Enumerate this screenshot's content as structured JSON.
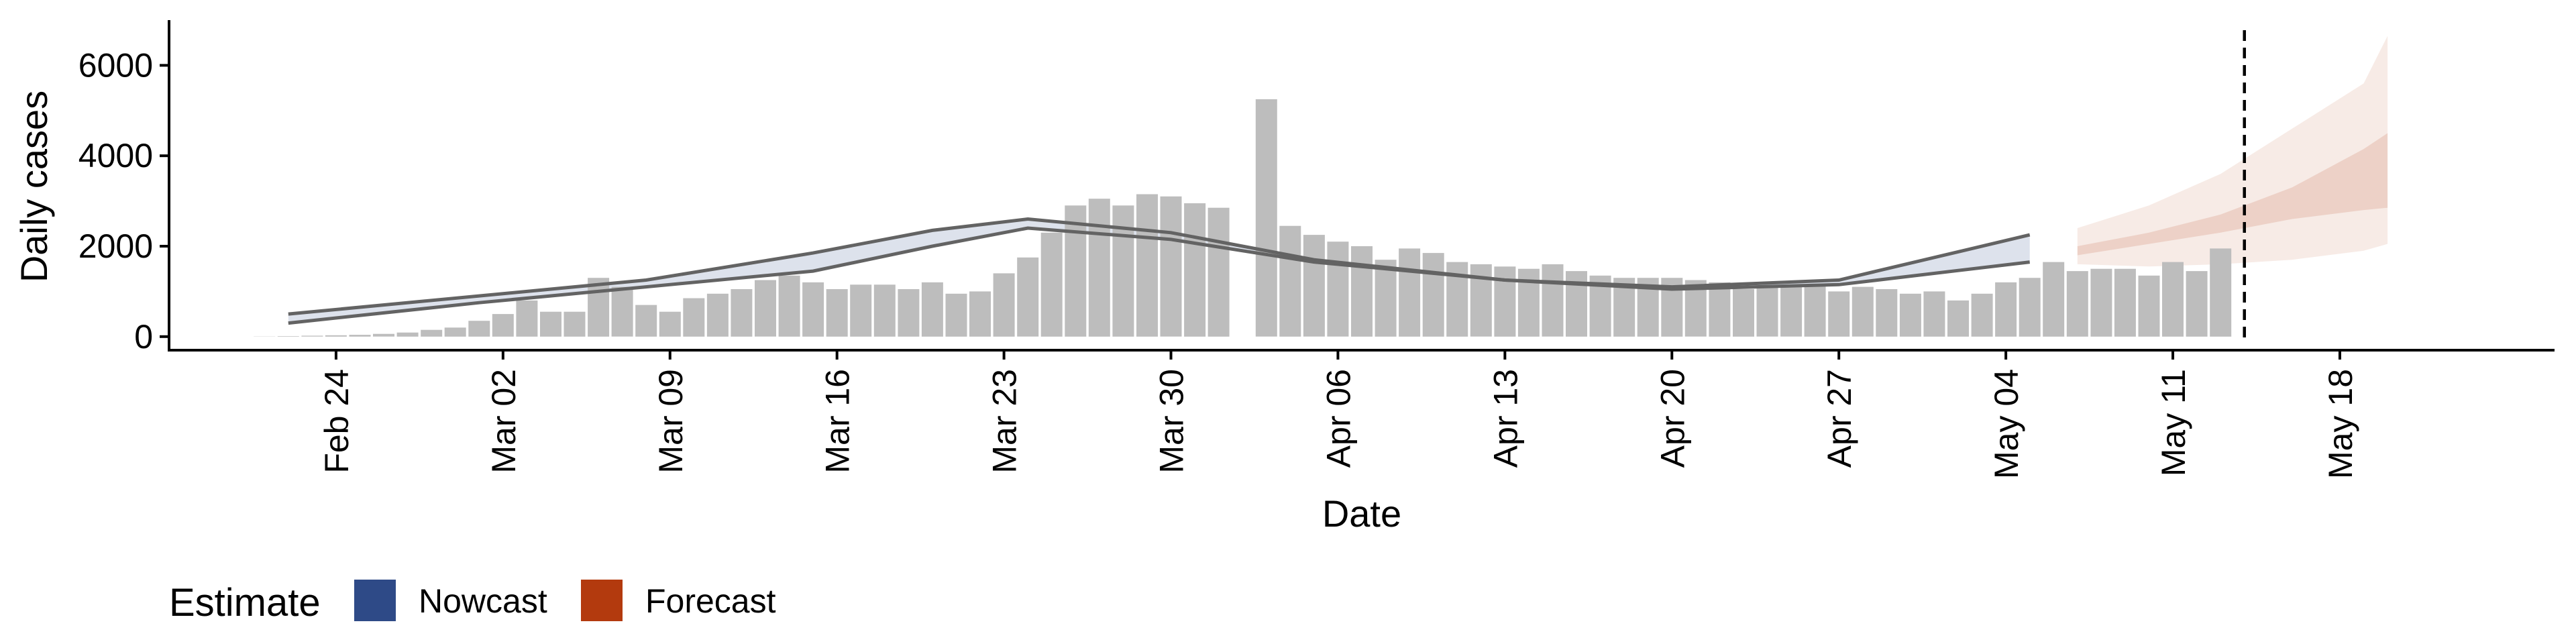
{
  "chart_data": {
    "type": "bar",
    "title": "",
    "xlabel": "Date",
    "ylabel": "Daily cases",
    "xlim": [
      "2020-02-17",
      "2020-05-27"
    ],
    "ylim": [
      -300,
      7000
    ],
    "y_ticks": [
      0,
      2000,
      4000,
      6000
    ],
    "x_ticks": [
      {
        "date": "2020-02-24",
        "label": "Feb 24"
      },
      {
        "date": "2020-03-02",
        "label": "Mar 02"
      },
      {
        "date": "2020-03-09",
        "label": "Mar 09"
      },
      {
        "date": "2020-03-16",
        "label": "Mar 16"
      },
      {
        "date": "2020-03-23",
        "label": "Mar 23"
      },
      {
        "date": "2020-03-30",
        "label": "Mar 30"
      },
      {
        "date": "2020-04-06",
        "label": "Apr 06"
      },
      {
        "date": "2020-04-13",
        "label": "Apr 13"
      },
      {
        "date": "2020-04-20",
        "label": "Apr 20"
      },
      {
        "date": "2020-04-27",
        "label": "Apr 27"
      },
      {
        "date": "2020-05-04",
        "label": "May 04"
      },
      {
        "date": "2020-05-11",
        "label": "May 11"
      },
      {
        "date": "2020-05-18",
        "label": "May 18"
      }
    ],
    "grid": false,
    "legend_position": "bottom-left",
    "colors": {
      "bars": "#bdbdbd",
      "nowcast": "#2e4a87",
      "forecast": "#b33a0e",
      "estimate_line": "#636363"
    },
    "legend": {
      "title": "Estimate",
      "items": [
        {
          "name": "Nowcast",
          "color": "#2e4a87"
        },
        {
          "name": "Forecast",
          "color": "#b33a0e"
        }
      ]
    },
    "observed": {
      "start_date": "2020-02-21",
      "values": [
        5,
        10,
        20,
        30,
        40,
        60,
        90,
        150,
        200,
        350,
        500,
        800,
        550,
        550,
        1300,
        1100,
        700,
        550,
        850,
        950,
        1050,
        1250,
        1350,
        1200,
        1050,
        1150,
        1150,
        1050,
        1200,
        950,
        1000,
        1400,
        1750,
        2300,
        2900,
        3050,
        2900,
        3150,
        3100,
        2950,
        2850,
        0,
        5250,
        2450,
        2250,
        2100,
        2000,
        1700,
        1950,
        1850,
        1650,
        1600,
        1550,
        1500,
        1600,
        1450,
        1350,
        1300,
        1300,
        1300,
        1250,
        1200,
        1050,
        1100,
        1100,
        1150,
        1000,
        1100,
        1050,
        950,
        1000,
        800,
        950,
        1200,
        1300,
        1650,
        1450,
        1500,
        1500,
        1350,
        1650,
        1450,
        1950
      ]
    },
    "forecast_cutoff": "2020-05-14",
    "estimate_upper": {
      "dates": [
        "2020-02-22",
        "2020-03-01",
        "2020-03-08",
        "2020-03-15",
        "2020-03-20",
        "2020-03-24",
        "2020-03-30",
        "2020-04-05",
        "2020-04-13",
        "2020-04-20",
        "2020-04-27",
        "2020-05-05"
      ],
      "values": [
        500,
        900,
        1250,
        1850,
        2350,
        2600,
        2300,
        1700,
        1250,
        1100,
        1250,
        2250
      ]
    },
    "estimate_lower": {
      "dates": [
        "2020-02-22",
        "2020-03-01",
        "2020-03-08",
        "2020-03-15",
        "2020-03-20",
        "2020-03-24",
        "2020-03-30",
        "2020-04-05",
        "2020-04-13",
        "2020-04-20",
        "2020-04-27",
        "2020-05-05"
      ],
      "values": [
        300,
        750,
        1100,
        1450,
        2000,
        2400,
        2150,
        1650,
        1250,
        1050,
        1150,
        1650
      ]
    },
    "forecast_outer": {
      "dates": [
        "2020-05-07",
        "2020-05-10",
        "2020-05-13",
        "2020-05-16",
        "2020-05-19",
        "2020-05-20"
      ],
      "lower": [
        1600,
        1550,
        1600,
        1700,
        1900,
        2050
      ],
      "upper": [
        2400,
        2900,
        3600,
        4600,
        5600,
        6650
      ]
    },
    "forecast_inner": {
      "dates": [
        "2020-05-07",
        "2020-05-10",
        "2020-05-13",
        "2020-05-16",
        "2020-05-19",
        "2020-05-20"
      ],
      "lower": [
        1800,
        2050,
        2300,
        2600,
        2800,
        2850
      ],
      "upper": [
        2000,
        2300,
        2700,
        3300,
        4150,
        4500
      ]
    }
  }
}
